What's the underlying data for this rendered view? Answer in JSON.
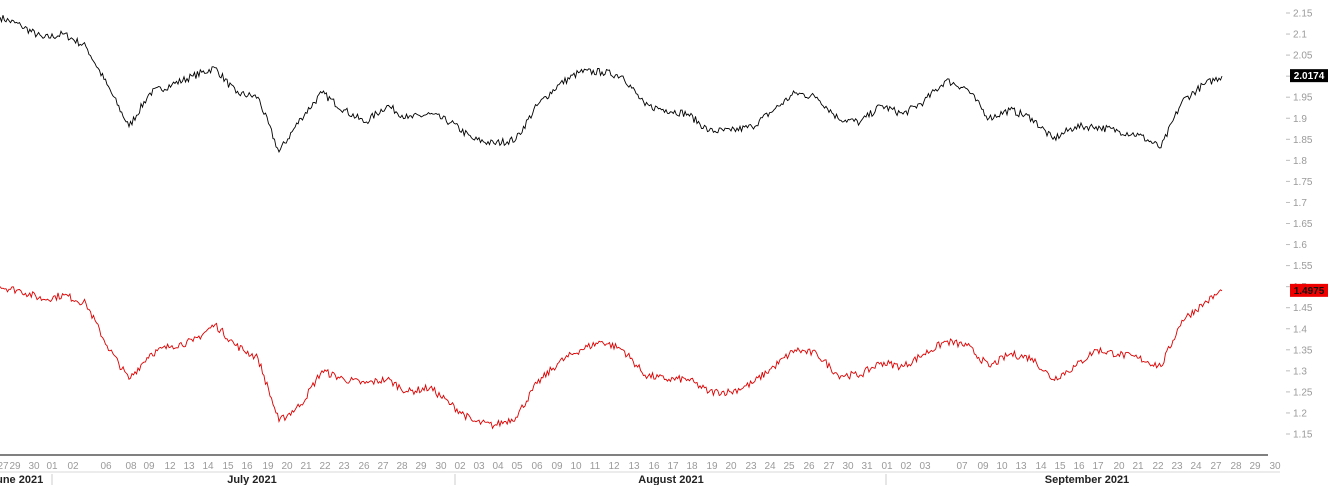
{
  "chart_data": {
    "type": "line",
    "y_range": [
      1.11,
      2.17
    ],
    "y_ticks": [
      2.15,
      2.1,
      2.05,
      2.0,
      1.95,
      1.9,
      1.85,
      1.8,
      1.75,
      1.7,
      1.65,
      1.6,
      1.55,
      1.5,
      1.45,
      1.4,
      1.35,
      1.3,
      1.25,
      1.2,
      1.15
    ],
    "y_tick_labels": [
      "2.15",
      "2.1",
      "2.05",
      "2",
      "1.95",
      "1.9",
      "1.85",
      "1.8",
      "1.75",
      "1.7",
      "1.65",
      "1.6",
      "1.55",
      "1.5",
      "1.45",
      "1.4",
      "1.35",
      "1.3",
      "1.25",
      "1.2",
      "1.15"
    ],
    "x_day_labels": [
      "27",
      "29",
      "30",
      "01",
      "02",
      "06",
      "08",
      "09",
      "12",
      "13",
      "14",
      "15",
      "16",
      "19",
      "20",
      "21",
      "22",
      "23",
      "26",
      "27",
      "28",
      "29",
      "30",
      "02",
      "03",
      "04",
      "05",
      "06",
      "09",
      "10",
      "11",
      "12",
      "13",
      "16",
      "17",
      "18",
      "19",
      "20",
      "23",
      "24",
      "25",
      "26",
      "27",
      "30",
      "31",
      "01",
      "02",
      "03",
      "07",
      "09",
      "10",
      "13",
      "14",
      "15",
      "16",
      "17",
      "20",
      "21",
      "22",
      "23",
      "24",
      "27",
      "28",
      "29",
      "30"
    ],
    "x_month_labels": [
      "June 2021",
      "July 2021",
      "August 2021",
      "September 2021"
    ],
    "series": [
      {
        "color": "#000000",
        "last_value_label": "2.0174",
        "x": [
          0,
          21,
          43,
          64,
          86,
          107,
          129,
          150,
          172,
          193,
          215,
          236,
          258,
          279,
          301,
          322,
          344,
          365,
          387,
          408,
          430,
          451,
          473,
          494,
          516,
          537,
          559,
          580,
          602,
          623,
          645,
          666,
          688,
          709,
          731,
          752,
          774,
          795,
          817,
          838,
          860,
          881,
          903,
          924,
          946,
          967,
          989,
          1010,
          1032,
          1053,
          1075,
          1096,
          1118,
          1139,
          1161,
          1182,
          1204,
          1222
        ],
        "y": [
          2.14,
          2.12,
          2.09,
          2.1,
          2.07,
          1.98,
          1.88,
          1.96,
          1.98,
          2.0,
          2.02,
          1.96,
          1.95,
          1.82,
          1.9,
          1.96,
          1.92,
          1.89,
          1.93,
          1.9,
          1.91,
          1.89,
          1.85,
          1.84,
          1.85,
          1.93,
          1.98,
          2.01,
          2.01,
          2.0,
          1.93,
          1.92,
          1.91,
          1.87,
          1.87,
          1.88,
          1.92,
          1.96,
          1.95,
          1.9,
          1.89,
          1.93,
          1.91,
          1.94,
          1.99,
          1.97,
          1.9,
          1.92,
          1.9,
          1.85,
          1.88,
          1.88,
          1.87,
          1.86,
          1.83,
          1.94,
          1.98,
          2.0
        ]
      },
      {
        "color": "#dd0000",
        "last_value_label": "1.4975",
        "x": [
          0,
          21,
          43,
          64,
          86,
          107,
          129,
          150,
          172,
          193,
          215,
          236,
          258,
          279,
          301,
          322,
          344,
          365,
          387,
          408,
          430,
          451,
          473,
          494,
          516,
          537,
          559,
          580,
          602,
          623,
          645,
          666,
          688,
          709,
          731,
          752,
          774,
          795,
          817,
          838,
          860,
          881,
          903,
          924,
          946,
          967,
          989,
          1010,
          1032,
          1053,
          1075,
          1096,
          1118,
          1139,
          1161,
          1182,
          1204,
          1222
        ],
        "y": [
          1.5,
          1.49,
          1.47,
          1.48,
          1.46,
          1.36,
          1.28,
          1.34,
          1.36,
          1.37,
          1.41,
          1.36,
          1.33,
          1.18,
          1.22,
          1.3,
          1.28,
          1.27,
          1.28,
          1.25,
          1.26,
          1.22,
          1.18,
          1.17,
          1.19,
          1.27,
          1.32,
          1.35,
          1.37,
          1.35,
          1.29,
          1.28,
          1.28,
          1.25,
          1.25,
          1.27,
          1.31,
          1.35,
          1.34,
          1.29,
          1.29,
          1.32,
          1.31,
          1.34,
          1.37,
          1.36,
          1.31,
          1.34,
          1.33,
          1.28,
          1.31,
          1.35,
          1.34,
          1.33,
          1.31,
          1.42,
          1.46,
          1.49
        ]
      }
    ]
  }
}
